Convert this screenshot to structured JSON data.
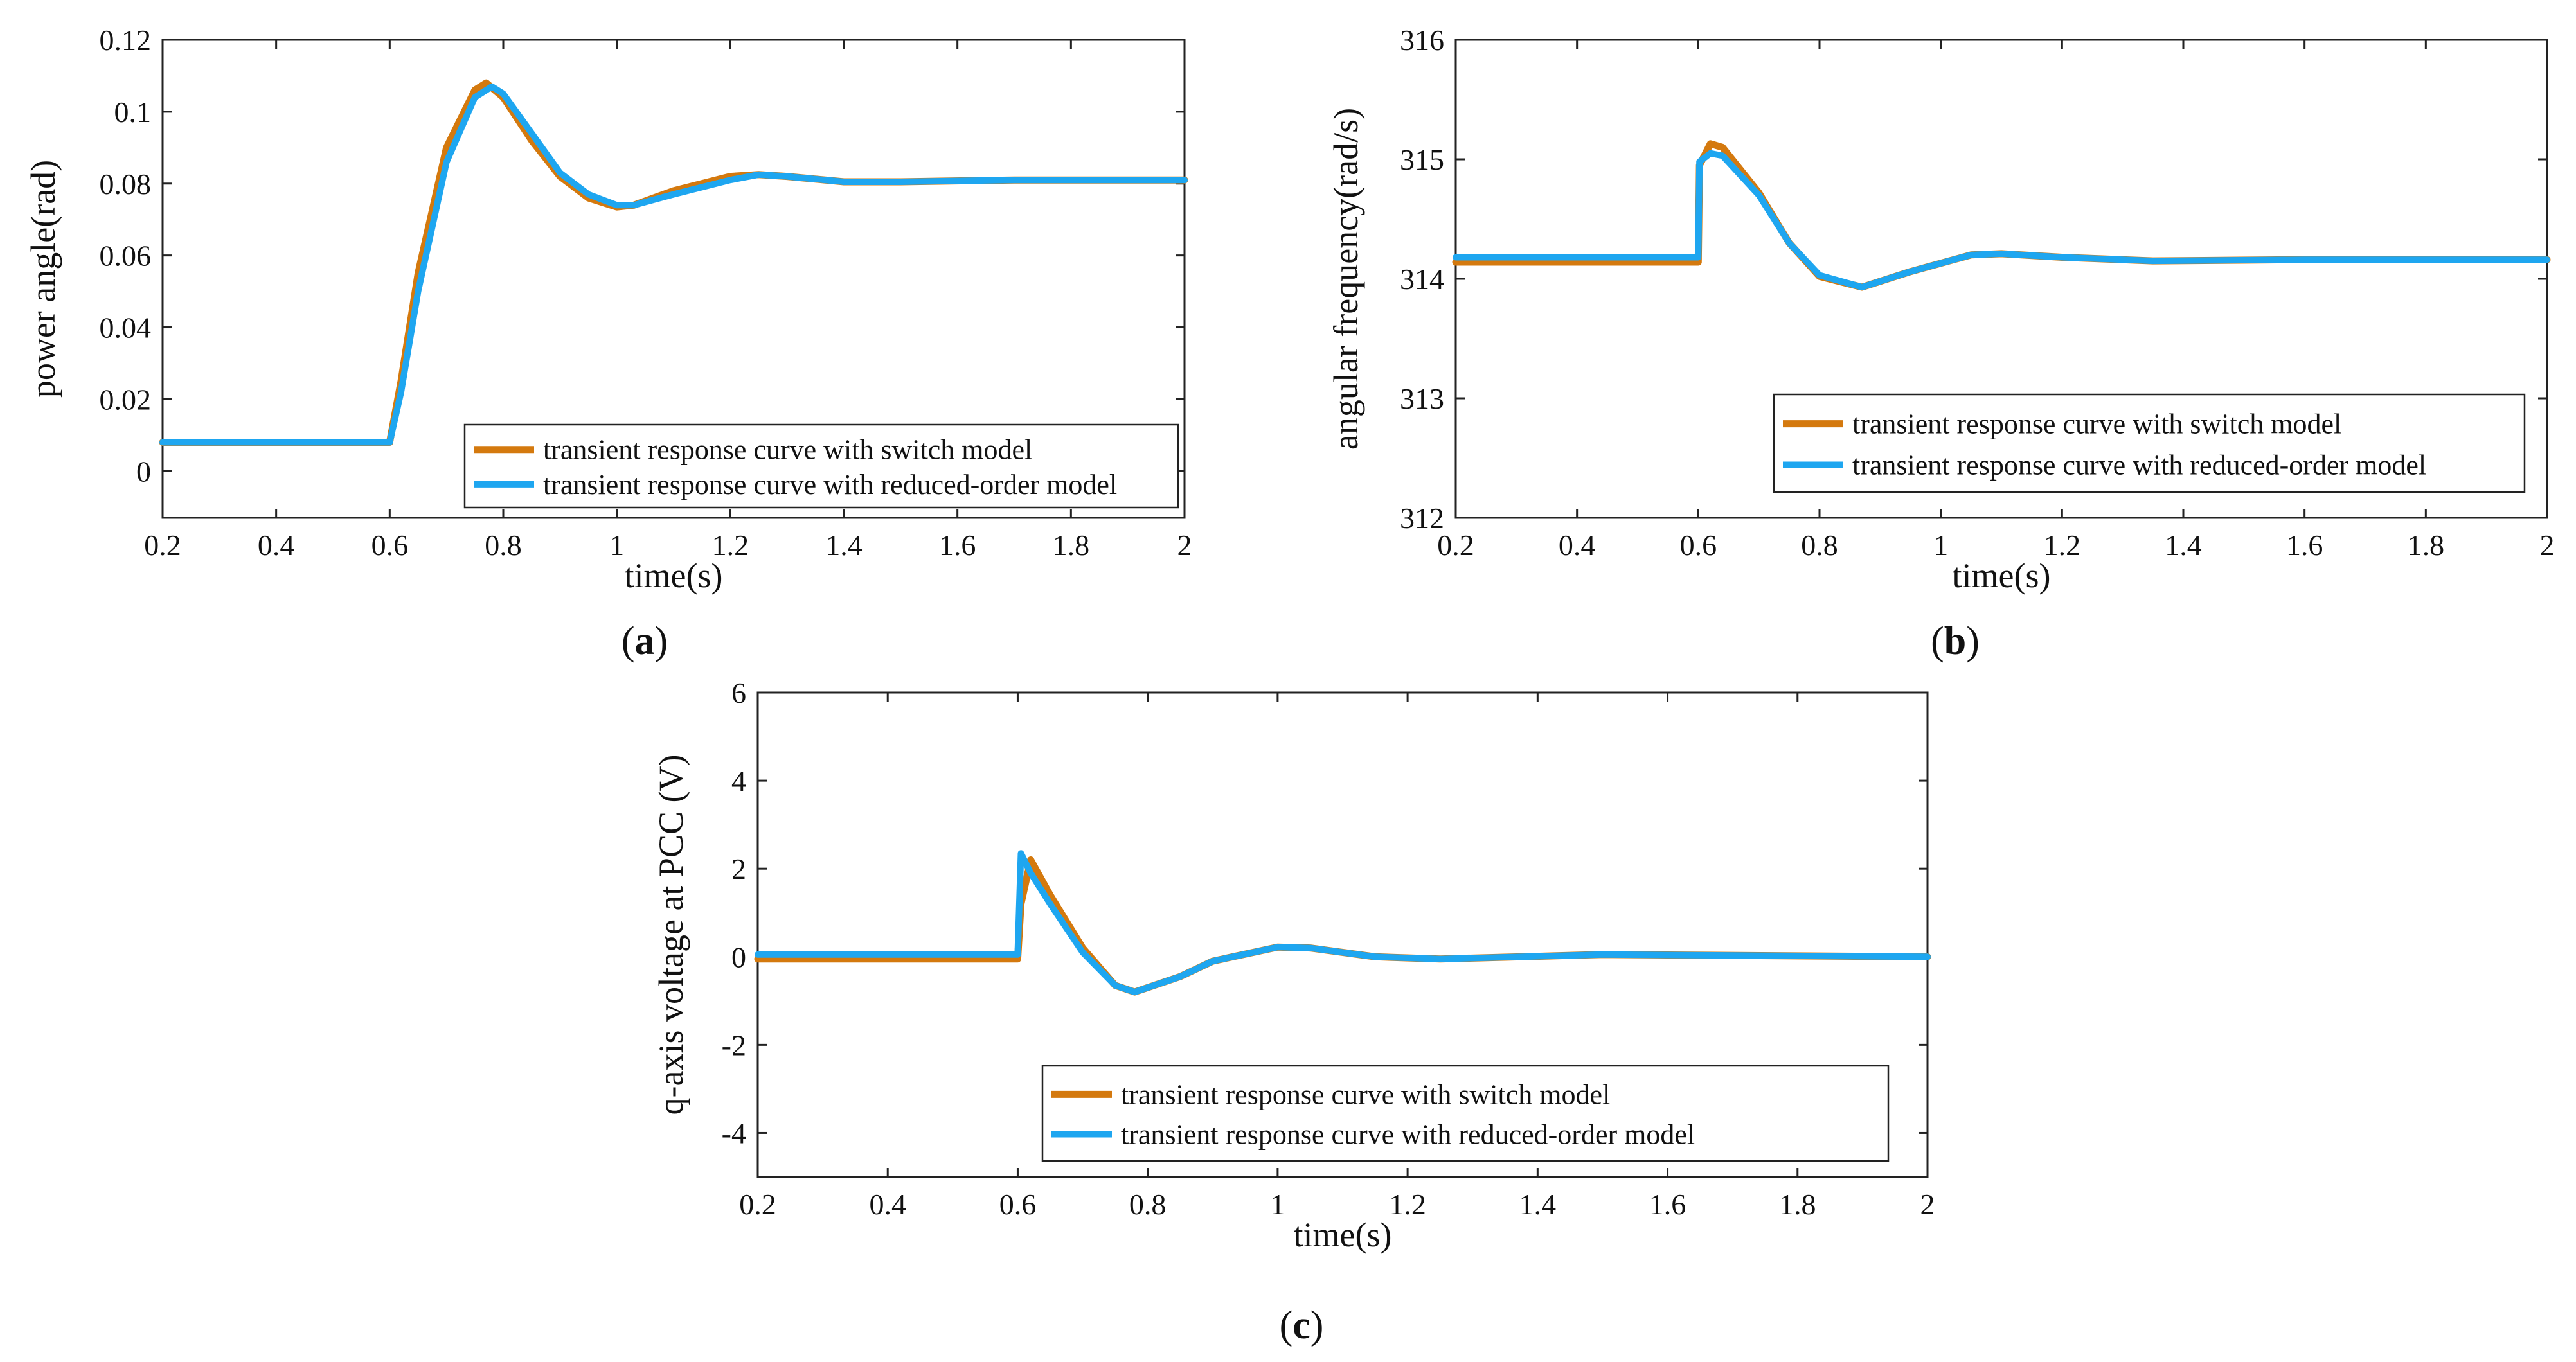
{
  "colors": {
    "switch_model": "#D4790E",
    "reduced_order": "#1EA6F0"
  },
  "chart_data": [
    {
      "type": "line",
      "caption_letter": "a",
      "xlabel": "time(s)",
      "ylabel": "power angle(rad)",
      "xlim": [
        0.2,
        2
      ],
      "ylim": [
        -0.013,
        0.12
      ],
      "xticks": [
        0.2,
        0.4,
        0.6,
        0.8,
        1,
        1.2,
        1.4,
        1.6,
        1.8,
        2
      ],
      "yticks": [
        0,
        0.02,
        0.04,
        0.06,
        0.08,
        0.1,
        0.12
      ],
      "grid": false,
      "legend_position": "bottom-right",
      "series": [
        {
          "name": "transient response curve with switch model",
          "color": "#D4790E",
          "x": [
            0.2,
            0.6,
            0.62,
            0.65,
            0.7,
            0.75,
            0.77,
            0.8,
            0.85,
            0.9,
            0.95,
            1.0,
            1.03,
            1.1,
            1.2,
            1.25,
            1.3,
            1.4,
            1.5,
            1.7,
            2.0
          ],
          "y": [
            0.008,
            0.008,
            0.025,
            0.055,
            0.09,
            0.106,
            0.108,
            0.104,
            0.092,
            0.082,
            0.076,
            0.0735,
            0.074,
            0.078,
            0.082,
            0.0825,
            0.082,
            0.0805,
            0.0805,
            0.081,
            0.081
          ]
        },
        {
          "name": "transient response curve with reduced-order model",
          "color": "#1EA6F0",
          "x": [
            0.2,
            0.6,
            0.62,
            0.65,
            0.7,
            0.75,
            0.78,
            0.8,
            0.85,
            0.9,
            0.95,
            1.0,
            1.03,
            1.1,
            1.2,
            1.25,
            1.3,
            1.4,
            1.5,
            1.7,
            2.0
          ],
          "y": [
            0.008,
            0.008,
            0.022,
            0.05,
            0.086,
            0.104,
            0.107,
            0.105,
            0.094,
            0.083,
            0.077,
            0.074,
            0.074,
            0.077,
            0.081,
            0.0825,
            0.082,
            0.0805,
            0.0805,
            0.081,
            0.081
          ]
        }
      ]
    },
    {
      "type": "line",
      "caption_letter": "b",
      "xlabel": "time(s)",
      "ylabel": "angular frequency(rad/s)",
      "xlim": [
        0.2,
        2
      ],
      "ylim": [
        312,
        316
      ],
      "xticks": [
        0.2,
        0.4,
        0.6,
        0.8,
        1,
        1.2,
        1.4,
        1.6,
        1.8,
        2
      ],
      "yticks": [
        312,
        313,
        314,
        315,
        316
      ],
      "grid": false,
      "legend_position": "bottom-right",
      "series": [
        {
          "name": "transient response curve with switch model",
          "color": "#D4790E",
          "x": [
            0.2,
            0.6,
            0.602,
            0.62,
            0.64,
            0.7,
            0.75,
            0.8,
            0.87,
            0.95,
            1.05,
            1.1,
            1.2,
            1.35,
            1.6,
            2.0
          ],
          "y": [
            314.14,
            314.14,
            314.95,
            315.13,
            315.1,
            314.72,
            314.3,
            314.02,
            313.93,
            314.06,
            314.2,
            314.21,
            314.18,
            314.15,
            314.16,
            314.16
          ]
        },
        {
          "name": "transient response curve with reduced-order model",
          "color": "#1EA6F0",
          "x": [
            0.2,
            0.6,
            0.602,
            0.62,
            0.64,
            0.7,
            0.75,
            0.8,
            0.87,
            0.95,
            1.05,
            1.1,
            1.2,
            1.35,
            1.6,
            2.0
          ],
          "y": [
            314.18,
            314.18,
            314.98,
            315.05,
            315.03,
            314.7,
            314.3,
            314.03,
            313.93,
            314.06,
            314.2,
            314.21,
            314.18,
            314.15,
            314.16,
            314.16
          ]
        }
      ]
    },
    {
      "type": "line",
      "caption_letter": "c",
      "xlabel": "time(s)",
      "ylabel": "q-axis voltage at PCC (V)",
      "xlim": [
        0.2,
        2
      ],
      "ylim": [
        -5,
        6
      ],
      "xticks": [
        0.2,
        0.4,
        0.6,
        0.8,
        1,
        1.2,
        1.4,
        1.6,
        1.8,
        2
      ],
      "yticks": [
        -4,
        -2,
        0,
        2,
        4,
        6
      ],
      "grid": false,
      "legend_position": "bottom-right",
      "series": [
        {
          "name": "transient response curve with switch model",
          "color": "#D4790E",
          "x": [
            0.2,
            0.6,
            0.605,
            0.62,
            0.65,
            0.7,
            0.75,
            0.78,
            0.85,
            0.9,
            1.0,
            1.05,
            1.15,
            1.25,
            1.5,
            2.0
          ],
          "y": [
            -0.05,
            -0.05,
            1.2,
            2.2,
            1.4,
            0.2,
            -0.65,
            -0.8,
            -0.45,
            -0.1,
            0.22,
            0.2,
            0.0,
            -0.05,
            0.05,
            0.0
          ]
        },
        {
          "name": "transient response curve with reduced-order model",
          "color": "#1EA6F0",
          "x": [
            0.2,
            0.6,
            0.605,
            0.62,
            0.65,
            0.7,
            0.75,
            0.78,
            0.85,
            0.9,
            1.0,
            1.05,
            1.15,
            1.25,
            1.5,
            2.0
          ],
          "y": [
            0.05,
            0.05,
            2.35,
            1.9,
            1.2,
            0.1,
            -0.65,
            -0.8,
            -0.45,
            -0.1,
            0.22,
            0.2,
            0.0,
            -0.05,
            0.05,
            0.0
          ]
        }
      ]
    }
  ]
}
